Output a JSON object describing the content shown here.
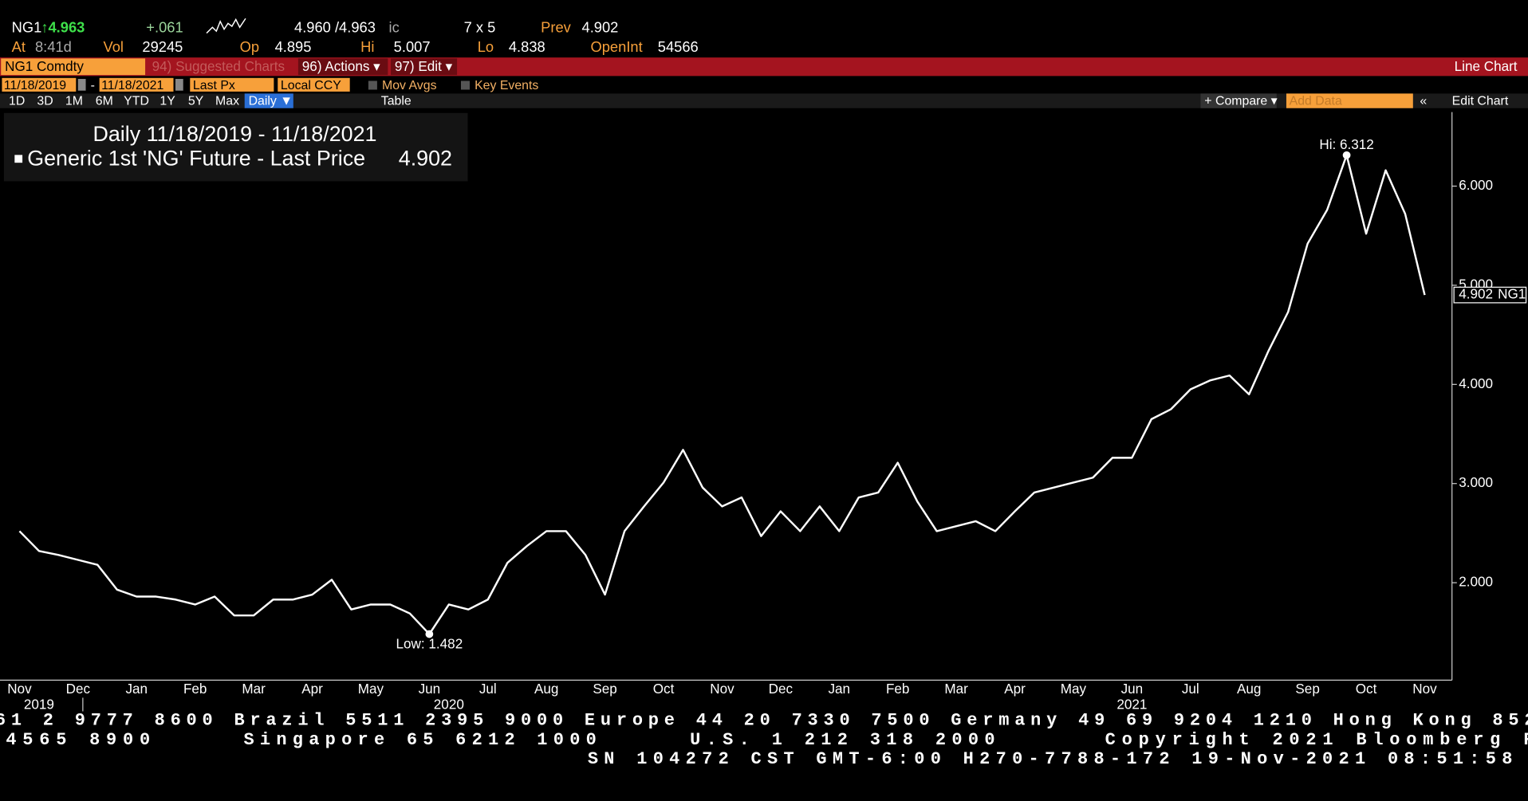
{
  "quote": {
    "ticker": "NG1",
    "last": "↑4.963",
    "change": "+.061",
    "bid_ask": "4.960 /4.963",
    "cond": "ic",
    "size": "7 x 5",
    "prev_label": "Prev",
    "prev": "4.902",
    "at_label": "At",
    "time": "8:41d",
    "vol_label": "Vol",
    "vol": "29245",
    "op_label": "Op",
    "op": "4.895",
    "hi_label": "Hi",
    "hi": "5.007",
    "lo_label": "Lo",
    "lo": "4.838",
    "oi_label": "OpenInt",
    "oi": "54566"
  },
  "toolbar": {
    "security": "NG1 Comdty",
    "suggested": "94) Suggested Charts",
    "actions": "96) Actions ▾",
    "edit": "97) Edit ▾",
    "chart_kind": "Line Chart",
    "start": "11/18/2019",
    "dash": "-",
    "end": "11/18/2021",
    "field": "Last Px",
    "currency": "Local CCY",
    "mov_avgs": "Mov Avgs",
    "key_events": "Key Events",
    "ranges": [
      "1D",
      "3D",
      "1M",
      "6M",
      "YTD",
      "1Y",
      "5Y",
      "Max"
    ],
    "period": "Daily ▼",
    "table": "Table",
    "compare": "+ Compare ▾",
    "add_data": "Add Data",
    "collapse": "«",
    "edit_chart": "Edit Chart"
  },
  "chart_data": {
    "type": "line",
    "title": "Daily 11/18/2019 - 11/18/2021",
    "last_value": 4.902,
    "tag": "NG1",
    "categories": [
      "Nov",
      null,
      null,
      "Dec",
      null,
      null,
      "Jan",
      null,
      null,
      "Feb",
      null,
      null,
      "Mar",
      null,
      null,
      "Apr",
      null,
      null,
      "May",
      null,
      null,
      "Jun",
      null,
      null,
      "Jul",
      null,
      null,
      "Aug",
      null,
      null,
      "Sep",
      null,
      null,
      "Oct",
      null,
      null,
      "Nov",
      null,
      null,
      "Dec",
      null,
      null,
      "Jan",
      null,
      null,
      "Feb",
      null,
      null,
      "Mar",
      null,
      null,
      "Apr",
      null,
      null,
      "May",
      null,
      null,
      "Jun",
      null,
      null,
      "Jul",
      null,
      null,
      "Aug",
      null,
      null,
      "Sep",
      null,
      null,
      "Oct",
      null,
      null,
      "Nov"
    ],
    "year_labels": [
      null,
      "2019",
      null,
      null,
      null,
      null,
      null,
      null,
      null,
      null,
      null,
      null,
      null,
      null,
      null,
      null,
      null,
      null,
      null,
      null,
      null,
      null,
      "2020",
      null,
      null,
      null,
      null,
      null,
      null,
      null,
      null,
      null,
      null,
      null,
      null,
      null,
      null,
      null,
      null,
      null,
      null,
      null,
      null,
      null,
      null,
      null,
      null,
      null,
      null,
      null,
      null,
      null,
      null,
      null,
      null,
      null,
      null,
      "2021",
      null,
      null,
      null,
      null,
      null,
      null,
      null,
      null,
      null,
      null,
      null,
      null,
      null,
      null,
      null
    ],
    "series": [
      {
        "name": "Generic 1st 'NG' Future - Last Price",
        "color": "#ffffff",
        "values": [
          2.52,
          2.32,
          2.28,
          2.23,
          2.18,
          1.93,
          1.86,
          1.86,
          1.83,
          1.78,
          1.86,
          1.67,
          1.67,
          1.83,
          1.83,
          1.88,
          2.03,
          1.73,
          1.78,
          1.78,
          1.69,
          1.482,
          1.78,
          1.73,
          1.83,
          2.2,
          2.37,
          2.52,
          2.52,
          2.28,
          1.88,
          2.52,
          2.77,
          3.01,
          3.34,
          2.96,
          2.77,
          2.86,
          2.47,
          2.72,
          2.52,
          2.77,
          2.52,
          2.86,
          2.91,
          3.21,
          2.82,
          2.52,
          2.57,
          2.62,
          2.52,
          2.72,
          2.91,
          2.96,
          3.01,
          3.06,
          3.26,
          3.26,
          3.65,
          3.75,
          3.95,
          4.04,
          4.09,
          3.9,
          4.34,
          4.73,
          5.42,
          5.76,
          6.312,
          5.52,
          6.16,
          5.72,
          4.902
        ]
      }
    ],
    "annotations": [
      {
        "text": "Hi: 6.312",
        "value": 6.312
      },
      {
        "text": "Low: 1.482",
        "value": 1.482
      }
    ],
    "ylim": [
      1.017,
      6.747
    ],
    "yticks": [
      {
        "value": 2,
        "label": "2.000"
      },
      {
        "value": 3,
        "label": "3.000"
      },
      {
        "value": 4,
        "label": "4.000"
      },
      {
        "value": 5,
        "label": "5.000"
      },
      {
        "value": 6,
        "label": "6.000"
      }
    ],
    "grid": false
  },
  "footer": {
    "line1": "61 2 9777 8600 Brazil 5511 2395 9000 Europe 44 20 7330 7500 Germany 49 69 9204 1210 Hong Kong 852",
    "line2": [
      "4565 8900",
      "Singapore 65 6212 1000",
      "U.S. 1 212 318 2000",
      "Copyright 2021 Bloomberg F"
    ],
    "line3": "SN 104272 CST  GMT-6:00 H270-7788-172 19-Nov-2021 08:51:58"
  }
}
